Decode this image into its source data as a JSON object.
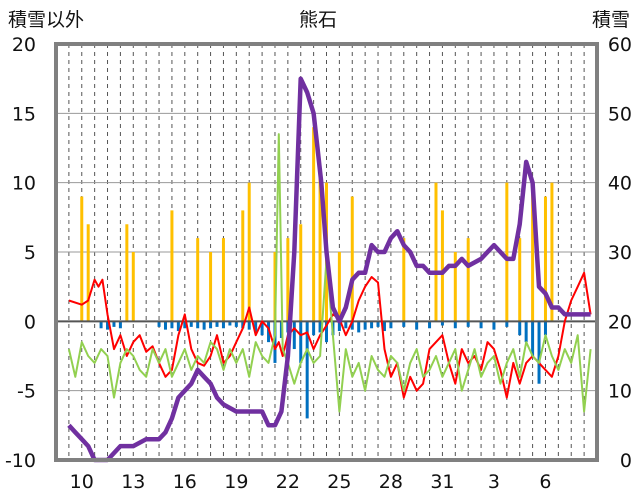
{
  "chart_data": {
    "type": "line",
    "title": "熊石",
    "ylabel_left": "積雪以外",
    "ylabel_right": "積雪",
    "y_left": {
      "ticks": [
        "-10",
        "-5",
        "0",
        "5",
        "10",
        "15",
        "20"
      ],
      "min": -10,
      "max": 20
    },
    "y_right": {
      "ticks": [
        "0",
        "10",
        "20",
        "30",
        "40",
        "50",
        "60"
      ],
      "min": 0,
      "max": 60
    },
    "x_ticks": [
      "10",
      "13",
      "16",
      "19",
      "22",
      "25",
      "28",
      "31",
      "3",
      "6"
    ],
    "grid": "dashed vertical",
    "colors": {
      "temp_max": "#ff0000",
      "temp_min": "#92d050",
      "snow_depth": "#7030a0",
      "precip": "#ffc000",
      "neg_bars": "#0070c0",
      "axis_frame": "#808080"
    },
    "series": [
      {
        "color_key": "temp_max",
        "axis": "left",
        "x": [
          0,
          1,
          1.5,
          2,
          2.3,
          2.6,
          3,
          3.5,
          4,
          4.5,
          5,
          5.5,
          6,
          6.5,
          7,
          7.5,
          8,
          8.5,
          9,
          9.5,
          10,
          10.5,
          11,
          11.5,
          12,
          12.5,
          13,
          13.5,
          14,
          14.5,
          15,
          15.5,
          16,
          16.3,
          16.6,
          17,
          17.5,
          18,
          18.5,
          19,
          19.5,
          20,
          20.5,
          21,
          21.5,
          22,
          22.5,
          23,
          23.5,
          24,
          24.5,
          25,
          25.5,
          26,
          26.5,
          27,
          27.5,
          28,
          28.5,
          29,
          29.5,
          30,
          30.5,
          31,
          31.5,
          32,
          32.5,
          33,
          33.5,
          34,
          34.5,
          35,
          35.5,
          36,
          36.5,
          37,
          37.5,
          38,
          38.5,
          39,
          39.5,
          40,
          40.5
        ],
        "values": [
          1.5,
          1.2,
          1.5,
          3,
          2.5,
          3,
          0.5,
          -2,
          -1,
          -2.5,
          -1.5,
          -1,
          -2.2,
          -1.8,
          -3,
          -4,
          -3.5,
          -1,
          0.5,
          -2,
          -3,
          -3.2,
          -2.5,
          -1,
          -3,
          -2.5,
          -1.5,
          -0.5,
          1,
          -1,
          0,
          -0.5,
          -2,
          -1.5,
          -2.5,
          -1,
          -0.5,
          -1,
          -0.8,
          -2,
          -1,
          -0.3,
          0.5,
          0.2,
          -1,
          0,
          1.5,
          2.5,
          3.2,
          2.8,
          -2,
          -4,
          -3,
          -5.5,
          -4,
          -5,
          -4.5,
          -2,
          -1.5,
          -1,
          -3,
          -4.5,
          -2,
          -3,
          -2.5,
          -3.5,
          -1.5,
          -2,
          -3.5,
          -5.5,
          -3,
          -4.5,
          -3,
          -2.5,
          -3,
          -3.5,
          -4,
          -2.5,
          0,
          1.5,
          2.5,
          3.5,
          0.5
        ]
      },
      {
        "color_key": "temp_min",
        "axis": "left",
        "x": [
          0,
          0.5,
          1,
          1.5,
          2,
          2.5,
          3,
          3.5,
          4,
          4.5,
          5,
          5.5,
          6,
          6.5,
          7,
          7.5,
          8,
          8.5,
          9,
          9.5,
          10,
          10.5,
          11,
          11.5,
          12,
          12.5,
          13,
          13.5,
          14,
          14.5,
          15,
          15.5,
          16,
          16.3,
          16.6,
          17,
          17.5,
          18,
          18.5,
          19,
          19.5,
          20,
          20.5,
          21,
          21.5,
          22,
          22.5,
          23,
          23.5,
          24,
          24.5,
          25,
          25.5,
          26,
          26.5,
          27,
          27.5,
          28,
          28.5,
          29,
          29.5,
          30,
          30.5,
          31,
          31.5,
          32,
          32.5,
          33,
          33.5,
          34,
          34.5,
          35,
          35.5,
          36,
          36.5,
          37,
          37.5,
          38,
          38.5,
          39,
          39.5,
          40,
          40.5
        ],
        "values": [
          -2,
          -4,
          -1.5,
          -2.5,
          -3,
          -2,
          -2.5,
          -5.5,
          -3,
          -2,
          -2.5,
          -3.5,
          -4,
          -2,
          -3,
          -2,
          -4,
          -3,
          -2,
          -3.5,
          -2.5,
          -3,
          -1.5,
          -2,
          -3.5,
          -2,
          -3,
          -2,
          -4,
          -1.5,
          -2.5,
          -3,
          -1,
          13.5,
          -2,
          -3,
          -4.5,
          -3,
          -2,
          -3,
          -2.5,
          4.5,
          -1,
          -6.5,
          -2,
          -4,
          -3,
          -5,
          -2.5,
          -3.5,
          -4,
          -2.5,
          -3,
          -5,
          -3,
          -2,
          -4,
          -3.5,
          -2.5,
          -4,
          -3,
          -2,
          -5,
          -3.5,
          -2,
          -4,
          -3,
          -2.5,
          -4.5,
          -3,
          -2,
          -4,
          -1.5,
          -2.5,
          -3,
          -1,
          -2.5,
          -3.5,
          -2,
          -3,
          -1,
          -6.5,
          -2
        ]
      },
      {
        "color_key": "snow_depth",
        "axis": "right",
        "x": [
          0,
          0.5,
          1,
          1.5,
          2,
          2.5,
          3,
          4,
          5,
          6,
          6.5,
          7,
          7.5,
          8,
          8.5,
          9,
          9.5,
          10,
          10.5,
          11,
          11.5,
          12,
          13,
          14,
          15,
          15.5,
          16,
          16.5,
          17,
          17.5,
          18,
          18.5,
          19,
          19.3,
          19.6,
          20,
          20.5,
          21,
          21.5,
          22,
          22.5,
          23,
          23.5,
          24,
          24.5,
          25,
          25.5,
          26,
          26.5,
          27,
          27.5,
          28,
          28.5,
          29,
          29.5,
          30,
          30.5,
          31,
          32,
          33,
          33.5,
          34,
          34.5,
          35,
          35.5,
          36,
          36.5,
          37,
          37.5,
          38,
          38.5,
          39,
          39.5,
          40,
          40.5
        ],
        "values": [
          5,
          4,
          3,
          2,
          0,
          0,
          0,
          2,
          2,
          3,
          3,
          3,
          4,
          6,
          9,
          10,
          11,
          13,
          12,
          11,
          9,
          8,
          7,
          7,
          7,
          5,
          5,
          7,
          15,
          30,
          55,
          53,
          50,
          45,
          40,
          30,
          22,
          20,
          22,
          26,
          27,
          27,
          31,
          30,
          30,
          32,
          33,
          31,
          30,
          28,
          28,
          27,
          27,
          27,
          28,
          28,
          29,
          28,
          29,
          31,
          30,
          29,
          29,
          34,
          43,
          40,
          25,
          24,
          22,
          22,
          21,
          21,
          21,
          21,
          21
        ]
      }
    ],
    "bars": [
      {
        "color_key": "precip",
        "axis": "left",
        "x": [
          1,
          1.5,
          4.5,
          5,
          8,
          10,
          11,
          12,
          13.5,
          14,
          16,
          17,
          18,
          19,
          19.5,
          20,
          21,
          22,
          26,
          28.5,
          29,
          30,
          31,
          34,
          35,
          36,
          37,
          37.5
        ],
        "values": [
          9,
          7,
          7,
          5,
          8,
          6,
          5,
          6,
          8,
          10,
          5,
          6,
          7,
          14,
          11,
          10,
          5,
          9,
          6,
          10,
          8,
          5,
          6,
          10,
          6,
          10,
          9,
          10
        ]
      },
      {
        "color_key": "neg_bars",
        "axis": "left",
        "x": [
          2.5,
          3,
          3.5,
          4,
          7,
          7.5,
          8,
          8.5,
          9,
          9.5,
          10,
          10.5,
          11,
          11.5,
          12,
          12.5,
          13,
          13.5,
          14,
          14.5,
          15,
          15.5,
          16,
          16.5,
          17,
          17.5,
          18,
          18.5,
          19,
          19.5,
          20,
          20.5,
          21,
          21.5,
          22,
          22.5,
          23,
          23.5,
          24,
          24.5,
          25,
          26,
          27,
          28,
          29,
          30,
          31,
          32,
          33,
          34,
          35,
          35.5,
          36,
          36.5,
          37
        ],
        "values": [
          -0.5,
          -0.6,
          -0.4,
          -0.5,
          -0.4,
          -0.6,
          -0.5,
          -0.7,
          -0.5,
          -0.4,
          -0.5,
          -0.6,
          -0.5,
          -0.4,
          -0.5,
          -0.3,
          -0.4,
          -0.5,
          -0.6,
          -0.8,
          -1,
          -1.5,
          -3,
          -1.2,
          -0.8,
          -2,
          -3,
          -7,
          -1,
          -0.8,
          -1.5,
          -1,
          -0.7,
          -0.5,
          -0.6,
          -0.8,
          -0.6,
          -0.5,
          -0.4,
          -0.7,
          -0.5,
          -0.4,
          -0.6,
          -0.5,
          -0.3,
          -0.5,
          -0.4,
          -0.5,
          -0.6,
          -0.4,
          -1,
          -1.5,
          -2.5,
          -4.5,
          -1
        ]
      }
    ]
  }
}
